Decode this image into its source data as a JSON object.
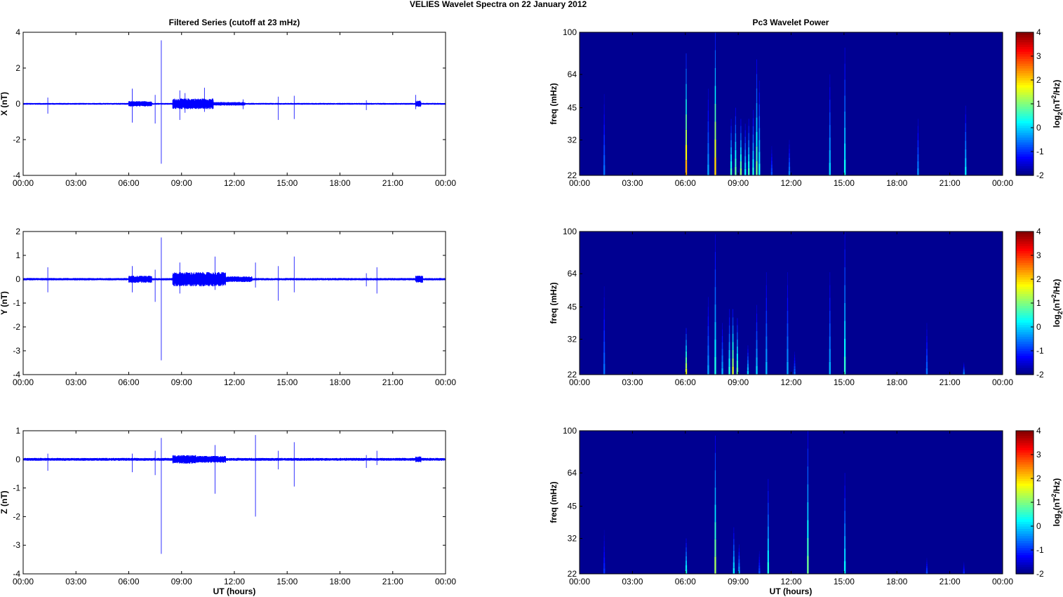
{
  "figure": {
    "title": "VELIES Wavelet Spectra on 22 January   2012",
    "left_title": "Filtered Series (cutoff at 23 mHz)",
    "right_title": "Pc3 Wavelet Power",
    "x_label": "UT (hours)"
  },
  "x_ticks": [
    "00:00",
    "03:00",
    "06:00",
    "09:00",
    "12:00",
    "15:00",
    "18:00",
    "21:00",
    "00:00"
  ],
  "freq_ticks": [
    "22",
    "32",
    "45",
    "64",
    "100"
  ],
  "colorbar": {
    "label_main": "log",
    "label_sub": "2",
    "label_paren": "(nT",
    "label_sup": "2",
    "label_end": "/Hz)",
    "ticks": [
      "-2",
      "-1",
      "0",
      "1",
      "2",
      "3",
      "4"
    ],
    "range": [
      -2,
      4
    ],
    "colormap": "jet"
  },
  "colors": {
    "series_line": "#0000ff",
    "spectrogram_background": "#00008f"
  },
  "chart_data": [
    {
      "type": "line",
      "ylabel": "X (nT)",
      "xlim": [
        0,
        24
      ],
      "ylim": [
        -4,
        4
      ],
      "yticks": [
        "-4",
        "-2",
        "0",
        "2",
        "4"
      ],
      "grid": false,
      "noise_amplitude": 0.05,
      "spikes": [
        {
          "t": 1.4,
          "a": 0.35,
          "b": -0.55
        },
        {
          "t": 6.2,
          "a": 0.85,
          "b": -1.05
        },
        {
          "t": 7.5,
          "a": 0.5,
          "b": -1.1
        },
        {
          "t": 7.85,
          "a": 3.55,
          "b": -3.35
        },
        {
          "t": 8.9,
          "a": 0.75,
          "b": -0.9
        },
        {
          "t": 9.2,
          "a": 0.6,
          "b": -0.5
        },
        {
          "t": 10.3,
          "a": 0.9,
          "b": -0.45
        },
        {
          "t": 12.5,
          "a": 0.25,
          "b": -0.3
        },
        {
          "t": 14.5,
          "a": 0.4,
          "b": -0.9
        },
        {
          "t": 15.4,
          "a": 0.45,
          "b": -0.85
        },
        {
          "t": 19.5,
          "a": 0.2,
          "b": -0.35
        },
        {
          "t": 22.3,
          "a": 0.5,
          "b": -0.3
        }
      ],
      "bursts": [
        {
          "t0": 6.0,
          "t1": 7.3,
          "amp": 0.15
        },
        {
          "t0": 8.5,
          "t1": 10.8,
          "amp": 0.3
        },
        {
          "t0": 10.8,
          "t1": 12.6,
          "amp": 0.1
        },
        {
          "t0": 22.3,
          "t1": 22.6,
          "amp": 0.18
        }
      ]
    },
    {
      "type": "line",
      "ylabel": "Y (nT)",
      "xlim": [
        0,
        24
      ],
      "ylim": [
        -4,
        2
      ],
      "yticks": [
        "-4",
        "-3",
        "-2",
        "-1",
        "0",
        "1",
        "2"
      ],
      "grid": false,
      "noise_amplitude": 0.05,
      "spikes": [
        {
          "t": 1.4,
          "a": 0.5,
          "b": -0.55
        },
        {
          "t": 6.2,
          "a": 0.55,
          "b": -0.55
        },
        {
          "t": 7.5,
          "a": 0.4,
          "b": -0.95
        },
        {
          "t": 7.85,
          "a": 1.75,
          "b": -3.4
        },
        {
          "t": 8.9,
          "a": 0.7,
          "b": -0.6
        },
        {
          "t": 10.9,
          "a": 0.95,
          "b": -0.45
        },
        {
          "t": 13.2,
          "a": 0.7,
          "b": -0.35
        },
        {
          "t": 14.5,
          "a": 0.55,
          "b": -0.9
        },
        {
          "t": 15.4,
          "a": 0.95,
          "b": -0.55
        },
        {
          "t": 19.5,
          "a": 0.25,
          "b": -0.3
        },
        {
          "t": 20.1,
          "a": 0.5,
          "b": -0.6
        }
      ],
      "bursts": [
        {
          "t0": 6.0,
          "t1": 7.3,
          "amp": 0.15
        },
        {
          "t0": 8.5,
          "t1": 11.5,
          "amp": 0.3
        },
        {
          "t0": 11.5,
          "t1": 13.0,
          "amp": 0.12
        },
        {
          "t0": 22.3,
          "t1": 22.7,
          "amp": 0.15
        }
      ]
    },
    {
      "type": "line",
      "ylabel": "Z (nT)",
      "xlim": [
        0,
        24
      ],
      "ylim": [
        -4,
        1
      ],
      "yticks": [
        "-4",
        "-3",
        "-2",
        "-1",
        "0",
        "1"
      ],
      "grid": false,
      "noise_amplitude": 0.05,
      "spikes": [
        {
          "t": 1.4,
          "a": 0.2,
          "b": -0.4
        },
        {
          "t": 6.2,
          "a": 0.2,
          "b": -0.45
        },
        {
          "t": 7.5,
          "a": 0.3,
          "b": -0.55
        },
        {
          "t": 7.85,
          "a": 0.75,
          "b": -3.3
        },
        {
          "t": 10.9,
          "a": 0.5,
          "b": -1.2
        },
        {
          "t": 13.2,
          "a": 0.85,
          "b": -2.0
        },
        {
          "t": 14.5,
          "a": 0.3,
          "b": -0.35
        },
        {
          "t": 15.4,
          "a": 0.6,
          "b": -0.95
        },
        {
          "t": 19.5,
          "a": 0.15,
          "b": -0.3
        },
        {
          "t": 20.1,
          "a": 0.3,
          "b": -0.2
        }
      ],
      "bursts": [
        {
          "t0": 8.5,
          "t1": 9.8,
          "amp": 0.15
        },
        {
          "t0": 9.8,
          "t1": 11.5,
          "amp": 0.12
        },
        {
          "t0": 22.3,
          "t1": 22.6,
          "amp": 0.1
        }
      ]
    },
    {
      "type": "heatmap",
      "ylabel": "freq (mHz)",
      "xlim": [
        0,
        24
      ],
      "ylim": [
        22,
        100
      ],
      "yscale": "log",
      "clim": [
        -2,
        4
      ],
      "background_value": -1.9,
      "streaks": [
        {
          "t": 1.4,
          "f_top": 52,
          "v": -0.6
        },
        {
          "t": 6.05,
          "f_top": 80,
          "v": 2.2
        },
        {
          "t": 7.3,
          "f_top": 55,
          "v": -0.3
        },
        {
          "t": 7.7,
          "f_top": 100,
          "v": 2.0
        },
        {
          "t": 8.6,
          "f_top": 40,
          "v": 0.6
        },
        {
          "t": 8.85,
          "f_top": 45,
          "v": 0.8
        },
        {
          "t": 9.15,
          "f_top": 40,
          "v": 1.0
        },
        {
          "t": 9.4,
          "f_top": 38,
          "v": 0.2
        },
        {
          "t": 9.6,
          "f_top": 40,
          "v": 0.6
        },
        {
          "t": 9.85,
          "f_top": 44,
          "v": 0.4
        },
        {
          "t": 10.05,
          "f_top": 75,
          "v": 0.9
        },
        {
          "t": 10.2,
          "f_top": 60,
          "v": 0.3
        },
        {
          "t": 10.9,
          "f_top": 30,
          "v": -0.8
        },
        {
          "t": 11.9,
          "f_top": 32,
          "v": -0.5
        },
        {
          "t": 14.2,
          "f_top": 64,
          "v": 0.0
        },
        {
          "t": 15.05,
          "f_top": 85,
          "v": 0.3
        },
        {
          "t": 19.2,
          "f_top": 40,
          "v": -0.4
        },
        {
          "t": 21.9,
          "f_top": 46,
          "v": 0.1
        }
      ]
    },
    {
      "type": "heatmap",
      "ylabel": "freq (mHz)",
      "xlim": [
        0,
        24
      ],
      "ylim": [
        22,
        100
      ],
      "yscale": "log",
      "clim": [
        -2,
        4
      ],
      "background_value": -1.9,
      "streaks": [
        {
          "t": 1.4,
          "f_top": 56,
          "v": -0.6
        },
        {
          "t": 6.05,
          "f_top": 36,
          "v": 1.6
        },
        {
          "t": 7.3,
          "f_top": 50,
          "v": -0.3
        },
        {
          "t": 7.7,
          "f_top": 97,
          "v": 0.4
        },
        {
          "t": 8.1,
          "f_top": 38,
          "v": -0.2
        },
        {
          "t": 8.5,
          "f_top": 44,
          "v": 0.4
        },
        {
          "t": 8.7,
          "f_top": 44,
          "v": 1.5
        },
        {
          "t": 8.95,
          "f_top": 40,
          "v": 0.8
        },
        {
          "t": 9.55,
          "f_top": 30,
          "v": 0.0
        },
        {
          "t": 10.05,
          "f_top": 46,
          "v": 0.0
        },
        {
          "t": 10.6,
          "f_top": 65,
          "v": -0.2
        },
        {
          "t": 11.8,
          "f_top": 65,
          "v": -0.3
        },
        {
          "t": 12.2,
          "f_top": 28,
          "v": -0.6
        },
        {
          "t": 14.2,
          "f_top": 65,
          "v": -0.2
        },
        {
          "t": 15.05,
          "f_top": 100,
          "v": 0.5
        },
        {
          "t": 19.7,
          "f_top": 38,
          "v": -0.6
        },
        {
          "t": 21.8,
          "f_top": 25,
          "v": -0.4
        }
      ]
    },
    {
      "type": "heatmap",
      "ylabel": "freq (mHz)",
      "xlim": [
        0,
        24
      ],
      "ylim": [
        22,
        100
      ],
      "yscale": "log",
      "clim": [
        -2,
        4
      ],
      "background_value": -1.9,
      "streaks": [
        {
          "t": 1.4,
          "f_top": 35,
          "v": -1.0
        },
        {
          "t": 6.05,
          "f_top": 32,
          "v": 0.4
        },
        {
          "t": 7.7,
          "f_top": 95,
          "v": 1.2
        },
        {
          "t": 8.75,
          "f_top": 36,
          "v": 0.2
        },
        {
          "t": 9.05,
          "f_top": 30,
          "v": -0.2
        },
        {
          "t": 10.2,
          "f_top": 28,
          "v": -0.8
        },
        {
          "t": 10.7,
          "f_top": 60,
          "v": 0.4
        },
        {
          "t": 12.95,
          "f_top": 100,
          "v": 0.9
        },
        {
          "t": 15.05,
          "f_top": 64,
          "v": 0.2
        },
        {
          "t": 19.7,
          "f_top": 26,
          "v": -0.8
        },
        {
          "t": 21.8,
          "f_top": 25,
          "v": -1.0
        }
      ]
    }
  ]
}
